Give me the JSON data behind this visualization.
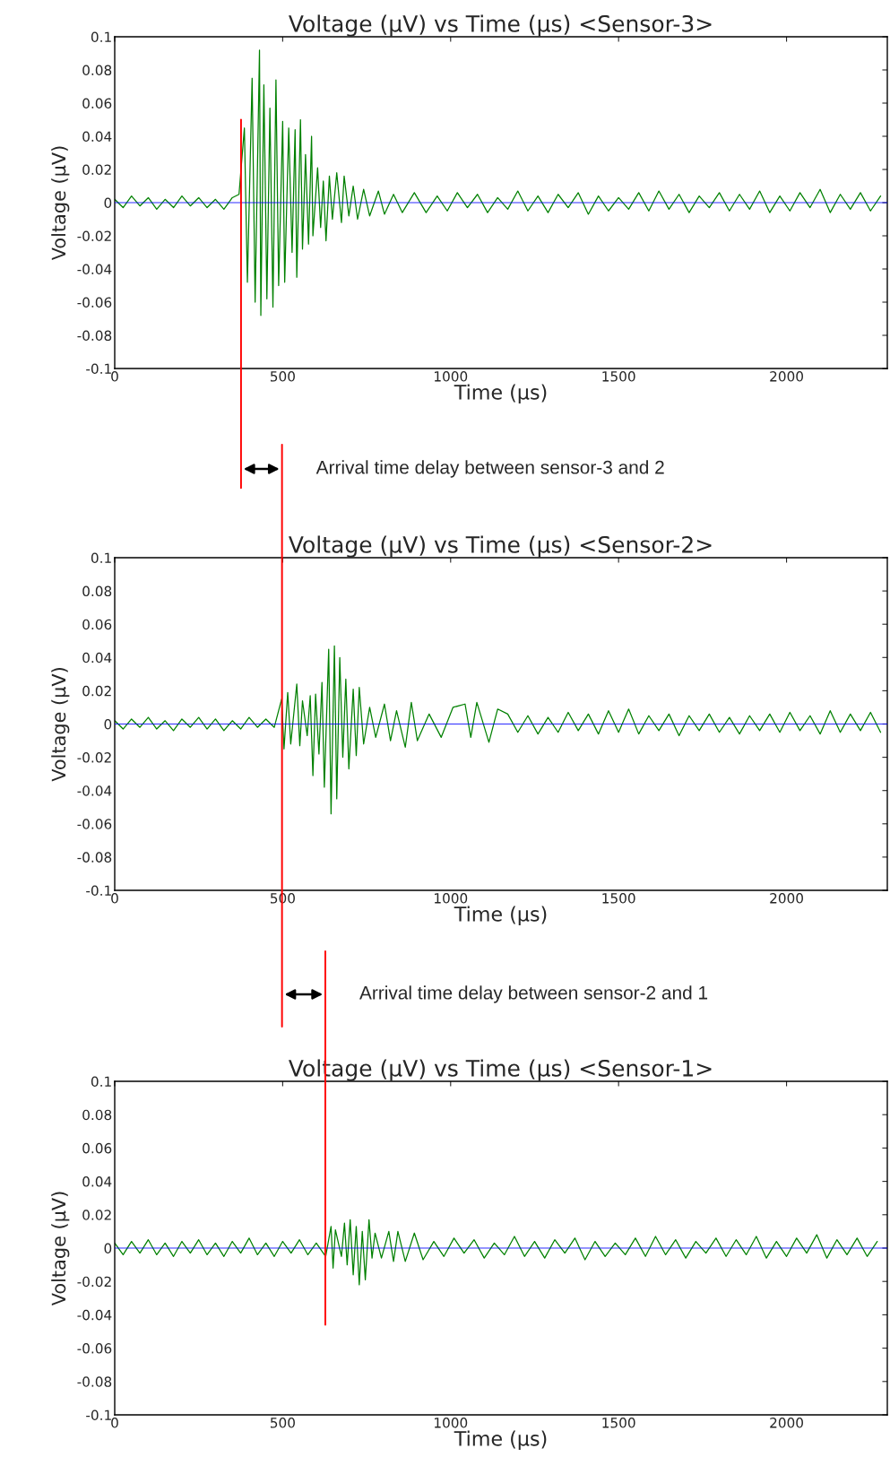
{
  "chart_data": [
    {
      "type": "line",
      "title": "Voltage (μV) vs Time (μs) <Sensor-3>",
      "xlabel": "Time (μs)",
      "ylabel": "Voltage (μV)",
      "xlim": [
        0,
        2300
      ],
      "xticks": [
        0,
        500,
        1000,
        1500,
        2000
      ],
      "ylim": [
        -0.1,
        0.1
      ],
      "yticks": [
        -0.1,
        -0.08,
        -0.06,
        -0.04,
        -0.02,
        0,
        0.02,
        0.04,
        0.06,
        0.08,
        0.1
      ],
      "grid": false,
      "series": [
        {
          "color": "#008000",
          "x": [
            0,
            25,
            50,
            75,
            100,
            125,
            150,
            175,
            200,
            225,
            250,
            275,
            300,
            325,
            350,
            370,
            378,
            386,
            395,
            409,
            418,
            431,
            435,
            444,
            453,
            462,
            471,
            480,
            488,
            500,
            506,
            518,
            528,
            537,
            542,
            553,
            559,
            568,
            577,
            586,
            590,
            604,
            613,
            621,
            629,
            639,
            648,
            661,
            675,
            683,
            697,
            710,
            723,
            741,
            759,
            785,
            803,
            830,
            856,
            892,
            927,
            960,
            990,
            1020,
            1050,
            1080,
            1110,
            1140,
            1170,
            1200,
            1230,
            1260,
            1290,
            1320,
            1350,
            1380,
            1410,
            1440,
            1470,
            1500,
            1530,
            1560,
            1590,
            1620,
            1650,
            1680,
            1710,
            1740,
            1770,
            1800,
            1830,
            1860,
            1890,
            1920,
            1950,
            1980,
            2010,
            2040,
            2070,
            2100,
            2130,
            2160,
            2190,
            2220,
            2250,
            2280
          ],
          "values": [
            0.002,
            -0.003,
            0.004,
            -0.002,
            0.003,
            -0.004,
            0.002,
            -0.003,
            0.004,
            -0.002,
            0.003,
            -0.003,
            0.002,
            -0.004,
            0.003,
            0.005,
            null,
            0.045,
            -0.048,
            0.075,
            -0.06,
            0.092,
            -0.068,
            0.071,
            -0.058,
            0.057,
            -0.063,
            0.074,
            -0.05,
            0.049,
            -0.048,
            0.045,
            -0.03,
            0.044,
            -0.045,
            0.05,
            -0.028,
            0.029,
            -0.025,
            0.04,
            -0.02,
            0.021,
            -0.015,
            0.013,
            -0.023,
            0.016,
            -0.01,
            0.018,
            -0.012,
            0.016,
            -0.008,
            0.01,
            -0.01,
            0.008,
            -0.008,
            0.007,
            -0.007,
            0.005,
            -0.006,
            0.006,
            -0.006,
            0.004,
            -0.005,
            0.006,
            -0.003,
            0.005,
            -0.006,
            0.003,
            -0.004,
            0.007,
            -0.005,
            0.004,
            -0.006,
            0.005,
            -0.003,
            0.006,
            -0.007,
            0.004,
            -0.005,
            0.003,
            -0.004,
            0.006,
            -0.005,
            0.007,
            -0.004,
            0.005,
            -0.006,
            0.004,
            -0.003,
            0.006,
            -0.005,
            0.005,
            -0.004,
            0.007,
            -0.006,
            0.004,
            -0.005,
            0.006,
            -0.003,
            0.008,
            -0.006,
            0.005,
            -0.004,
            0.006,
            -0.005,
            0.004
          ]
        }
      ],
      "ref_lines": [
        {
          "axis": "y",
          "value": 0,
          "color": "#0000ff"
        },
        {
          "axis": "x",
          "value": 376,
          "color": "#ff0000"
        }
      ],
      "annotations": [
        "Arrival time delay between sensor-3 and 2"
      ]
    },
    {
      "type": "line",
      "title": "Voltage (μV) vs Time (μs) <Sensor-2>",
      "xlabel": "Time (μs)",
      "ylabel": "Voltage (μV)",
      "xlim": [
        0,
        2300
      ],
      "xticks": [
        0,
        500,
        1000,
        1500,
        2000
      ],
      "ylim": [
        -0.1,
        0.1
      ],
      "yticks": [
        -0.1,
        -0.08,
        -0.06,
        -0.04,
        -0.02,
        0,
        0.02,
        0.04,
        0.06,
        0.08,
        0.1
      ],
      "grid": false,
      "series": [
        {
          "color": "#008000",
          "x": [
            0,
            25,
            50,
            75,
            100,
            125,
            150,
            175,
            200,
            225,
            250,
            275,
            300,
            325,
            350,
            375,
            400,
            425,
            450,
            475,
            497,
            504,
            515,
            524,
            542,
            551,
            559,
            573,
            582,
            590,
            598,
            608,
            617,
            624,
            637,
            644,
            654,
            661,
            670,
            679,
            688,
            697,
            710,
            719,
            728,
            741,
            759,
            777,
            803,
            821,
            839,
            865,
            883,
            901,
            936,
            972,
            1007,
            1043,
            1060,
            1078,
            1114,
            1140,
            1170,
            1200,
            1230,
            1260,
            1290,
            1320,
            1350,
            1380,
            1410,
            1440,
            1470,
            1500,
            1530,
            1560,
            1590,
            1620,
            1650,
            1680,
            1710,
            1740,
            1770,
            1800,
            1830,
            1860,
            1890,
            1920,
            1950,
            1980,
            2010,
            2040,
            2070,
            2100,
            2130,
            2160,
            2190,
            2220,
            2250,
            2280
          ],
          "values": [
            0.002,
            -0.003,
            0.003,
            -0.002,
            0.004,
            -0.003,
            0.002,
            -0.004,
            0.003,
            -0.002,
            0.004,
            -0.003,
            0.003,
            -0.004,
            0.002,
            -0.003,
            0.004,
            -0.002,
            0.003,
            -0.002,
            0.015,
            -0.015,
            0.019,
            -0.012,
            0.024,
            -0.013,
            0.014,
            -0.007,
            0.017,
            -0.031,
            0.018,
            -0.018,
            0.025,
            -0.038,
            0.045,
            -0.054,
            0.047,
            -0.045,
            0.04,
            -0.02,
            0.027,
            -0.027,
            0.021,
            -0.019,
            0.022,
            -0.012,
            0.01,
            -0.008,
            0.012,
            -0.01,
            0.008,
            -0.014,
            0.013,
            -0.01,
            0.006,
            -0.008,
            0.01,
            0.012,
            -0.008,
            0.013,
            -0.011,
            0.009,
            0.006,
            -0.005,
            0.005,
            -0.006,
            0.004,
            -0.005,
            0.007,
            -0.004,
            0.006,
            -0.006,
            0.008,
            -0.005,
            0.009,
            -0.006,
            0.005,
            -0.004,
            0.006,
            -0.007,
            0.005,
            -0.004,
            0.006,
            -0.005,
            0.004,
            -0.006,
            0.005,
            -0.004,
            0.006,
            -0.005,
            0.007,
            -0.004,
            0.005,
            -0.006,
            0.008,
            -0.005,
            0.006,
            -0.004,
            0.007,
            -0.005
          ]
        }
      ],
      "ref_lines": [
        {
          "axis": "y",
          "value": 0,
          "color": "#0000ff"
        },
        {
          "axis": "x",
          "value": 498,
          "color": "#ff0000"
        }
      ],
      "annotations": [
        "Arrival time delay between sensor-2 and 1"
      ]
    },
    {
      "type": "line",
      "title": "Voltage (μV) vs Time (μs) <Sensor-1>",
      "xlabel": "Time (μs)",
      "ylabel": "Voltage (μV)",
      "xlim": [
        0,
        2300
      ],
      "xticks": [
        0,
        500,
        1000,
        1500,
        2000
      ],
      "ylim": [
        -0.1,
        0.1
      ],
      "yticks": [
        -0.1,
        -0.08,
        -0.06,
        -0.04,
        -0.02,
        0,
        0.02,
        0.04,
        0.06,
        0.08,
        0.1
      ],
      "grid": false,
      "series": [
        {
          "color": "#008000",
          "x": [
            0,
            25,
            50,
            75,
            100,
            125,
            150,
            175,
            200,
            225,
            250,
            275,
            300,
            325,
            350,
            375,
            400,
            425,
            450,
            475,
            500,
            525,
            550,
            575,
            600,
            628,
            644,
            650,
            657,
            675,
            684,
            692,
            701,
            710,
            719,
            728,
            737,
            746,
            757,
            766,
            775,
            794,
            816,
            830,
            843,
            865,
            892,
            918,
            950,
            980,
            1010,
            1040,
            1070,
            1100,
            1130,
            1160,
            1190,
            1220,
            1250,
            1280,
            1310,
            1340,
            1370,
            1400,
            1430,
            1460,
            1490,
            1520,
            1550,
            1580,
            1610,
            1640,
            1670,
            1700,
            1730,
            1760,
            1790,
            1820,
            1850,
            1880,
            1910,
            1940,
            1970,
            2000,
            2030,
            2060,
            2090,
            2120,
            2150,
            2180,
            2210,
            2240,
            2270
          ],
          "values": [
            0.003,
            -0.004,
            0.004,
            -0.003,
            0.005,
            -0.004,
            0.003,
            -0.005,
            0.004,
            -0.003,
            0.005,
            -0.004,
            0.003,
            -0.005,
            0.004,
            -0.003,
            0.006,
            -0.004,
            0.003,
            -0.005,
            0.004,
            -0.003,
            0.005,
            -0.004,
            0.003,
            -0.005,
            0.013,
            -0.012,
            0.011,
            -0.005,
            0.015,
            -0.01,
            0.017,
            -0.016,
            0.013,
            -0.022,
            0.01,
            -0.019,
            0.017,
            -0.006,
            0.009,
            -0.006,
            0.01,
            -0.008,
            0.01,
            -0.008,
            0.009,
            -0.007,
            0.004,
            -0.005,
            0.006,
            -0.003,
            0.005,
            -0.006,
            0.003,
            -0.004,
            0.007,
            -0.005,
            0.004,
            -0.006,
            0.005,
            -0.003,
            0.006,
            -0.007,
            0.004,
            -0.005,
            0.003,
            -0.004,
            0.006,
            -0.005,
            0.007,
            -0.004,
            0.005,
            -0.006,
            0.004,
            -0.003,
            0.006,
            -0.005,
            0.005,
            -0.004,
            0.007,
            -0.006,
            0.004,
            -0.005,
            0.006,
            -0.003,
            0.008,
            -0.006,
            0.005,
            -0.004,
            0.006,
            -0.005,
            0.004
          ]
        }
      ],
      "ref_lines": [
        {
          "axis": "y",
          "value": 0,
          "color": "#0000ff"
        },
        {
          "axis": "x",
          "value": 627,
          "color": "#ff0000"
        }
      ]
    }
  ]
}
